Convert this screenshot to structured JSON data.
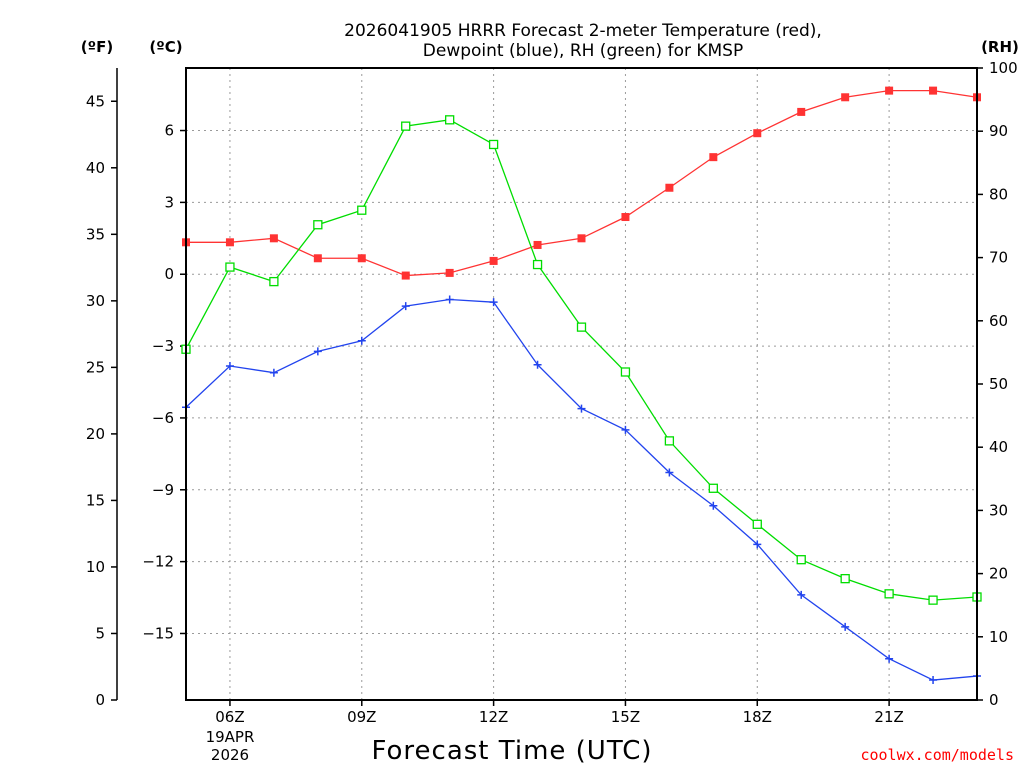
{
  "chart_data": {
    "type": "line",
    "title_line1": "2026041905 HRRR Forecast 2-meter Temperature (red),",
    "title_line2": "Dewpoint (blue), RH (green) for KMSP",
    "xlabel": "Forecast Time (UTC)",
    "credit": "coolwx.com/models",
    "units": {
      "fahrenheit": "(ºF)",
      "celsius": "(ºC)",
      "rh": "(RH)"
    },
    "date_label": [
      "19APR",
      "2026"
    ],
    "x_hours": [
      5,
      6,
      7,
      8,
      9,
      10,
      11,
      12,
      13,
      14,
      15,
      16,
      17,
      18,
      19,
      20,
      21,
      22,
      23
    ],
    "x_range_hours": [
      5,
      23
    ],
    "x_ticks": [
      {
        "hour": 6,
        "label": "06Z"
      },
      {
        "hour": 9,
        "label": "09Z"
      },
      {
        "hour": 12,
        "label": "12Z"
      },
      {
        "hour": 15,
        "label": "15Z"
      },
      {
        "hour": 18,
        "label": "18Z"
      },
      {
        "hour": 21,
        "label": "21Z"
      }
    ],
    "y_left_f": {
      "range": [
        0,
        47.5
      ],
      "ticks": [
        0,
        5,
        10,
        15,
        20,
        25,
        30,
        35,
        40,
        45
      ]
    },
    "y_inner_c": {
      "ticks": [
        -15,
        -12,
        -9,
        -6,
        -3,
        0,
        3,
        6
      ],
      "tick_labels": [
        "−15",
        "−12",
        "−9",
        "−6",
        "−3",
        "0",
        "3",
        "6"
      ]
    },
    "y_right_rh": {
      "range": [
        0,
        100
      ],
      "ticks": [
        0,
        10,
        20,
        30,
        40,
        50,
        60,
        70,
        80,
        90,
        100
      ]
    },
    "grid": true,
    "series": [
      {
        "name": "2-meter Temperature",
        "unit": "F",
        "color": "#ff3333",
        "marker": "filled-square",
        "values": [
          34.4,
          34.4,
          34.7,
          33.2,
          33.2,
          31.9,
          32.1,
          33.0,
          34.2,
          34.7,
          36.3,
          38.5,
          40.8,
          42.6,
          44.2,
          45.3,
          45.8,
          45.8,
          45.3
        ]
      },
      {
        "name": "Dewpoint",
        "unit": "F",
        "color": "#2244ee",
        "marker": "plus",
        "values": [
          22.0,
          25.1,
          24.6,
          26.2,
          27.0,
          29.6,
          30.1,
          29.9,
          25.2,
          21.9,
          20.3,
          17.1,
          14.6,
          11.7,
          7.9,
          5.5,
          3.1,
          1.5,
          1.8
        ]
      },
      {
        "name": "RH",
        "unit": "%",
        "color": "#00dd00",
        "marker": "open-square",
        "values": [
          55.5,
          68.5,
          66.2,
          75.2,
          77.5,
          90.8,
          91.8,
          87.9,
          68.9,
          59.0,
          51.9,
          41.0,
          33.5,
          27.8,
          22.2,
          19.2,
          16.8,
          15.8,
          16.3
        ]
      }
    ]
  }
}
